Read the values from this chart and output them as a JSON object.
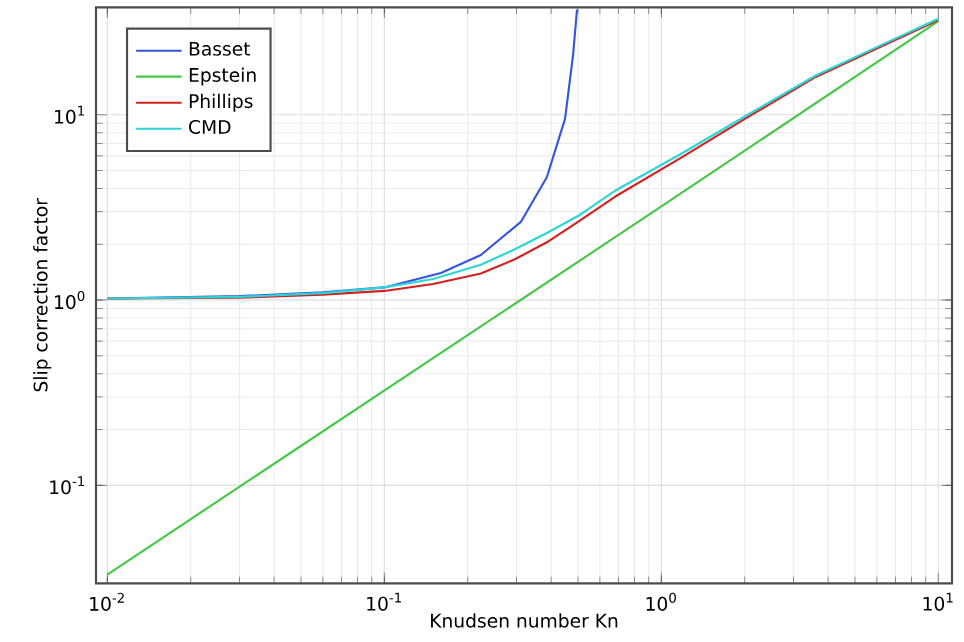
{
  "chart_data": {
    "type": "line",
    "xlabel": "Knudsen number Kn",
    "ylabel": "Slip correction factor",
    "log": "xy",
    "grid": true,
    "legend": "top left",
    "marker": "none",
    "line_style": "solid",
    "xlim": [
      0.0091,
      11.2
    ],
    "ylim": [
      0.0296,
      38
    ],
    "xticks": [
      {
        "value": 0.01,
        "label": "10$^{-2}$"
      },
      {
        "value": 0.1,
        "label": "10$^{-1}$"
      },
      {
        "value": 1,
        "label": "10$^{0}$"
      },
      {
        "value": 10,
        "label": "10$^{1}$"
      }
    ],
    "yticks": [
      {
        "value": 0.1,
        "label": "10$^{-1}$"
      },
      {
        "value": 1,
        "label": "10$^{0}$"
      },
      {
        "value": 10,
        "label": "10$^{1}$"
      }
    ],
    "series": [
      {
        "name": "Basset",
        "color": "#3355e0",
        "x": [
          0.01,
          0.03,
          0.06,
          0.1,
          0.16,
          0.223,
          0.311,
          0.386,
          0.449,
          0.48,
          0.496
        ],
        "values": [
          1.02,
          1.05,
          1.1,
          1.17,
          1.4,
          1.75,
          2.64,
          4.6,
          9.5,
          21,
          37
        ]
      },
      {
        "name": "Epstein",
        "color": "#46c846",
        "x": [
          0.01,
          1,
          10
        ],
        "values": [
          0.033,
          3.2,
          32
        ]
      },
      {
        "name": "Phillips",
        "color": "#d42020",
        "x": [
          0.01,
          0.03,
          0.06,
          0.1,
          0.15,
          0.223,
          0.296,
          0.386,
          0.5,
          0.68,
          1.18,
          2.05,
          3.61,
          6.27,
          10
        ],
        "values": [
          1.02,
          1.03,
          1.07,
          1.12,
          1.22,
          1.39,
          1.66,
          2.05,
          2.64,
          3.61,
          5.87,
          9.7,
          16,
          23.5,
          32.5
        ]
      },
      {
        "name": "CMD",
        "color": "#2ad6d6",
        "x": [
          0.01,
          0.03,
          0.06,
          0.1,
          0.15,
          0.223,
          0.296,
          0.386,
          0.5,
          0.68,
          1.18,
          2.05,
          3.61,
          6.27,
          10
        ],
        "values": [
          1.02,
          1.04,
          1.09,
          1.17,
          1.3,
          1.55,
          1.88,
          2.3,
          2.84,
          3.89,
          6.16,
          10,
          16.3,
          23.9,
          33
        ]
      }
    ]
  }
}
